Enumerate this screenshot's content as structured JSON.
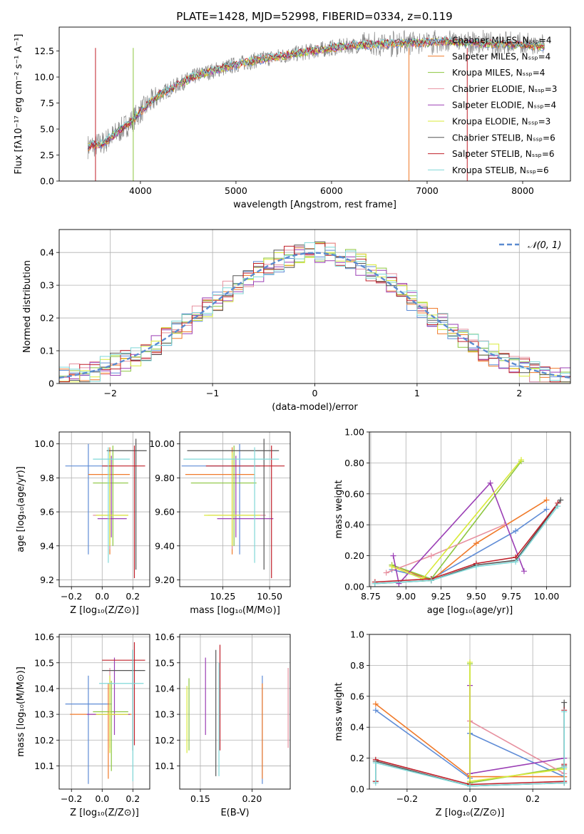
{
  "title": "PLATE=1428, MJD=52998, FIBERID=0334, z=0.119",
  "colors": {
    "chabrier_miles": "#5f8cd6",
    "salpeter_miles": "#f07a2a",
    "kroupa_miles": "#8cc63f",
    "chabrier_elodie": "#e7909f",
    "salpeter_elodie": "#9b3fb5",
    "kroupa_elodie": "#d9ea3a",
    "chabrier_stelib": "#555555",
    "salpeter_stelib": "#c0202a",
    "kroupa_stelib": "#7fd8d8",
    "normal": "#5b8bd0",
    "data_grey": "#888888"
  },
  "chart_data": [
    {
      "id": "spectrum",
      "type": "line",
      "xlabel": "wavelength [Angstrom, rest frame]",
      "ylabel": "Flux [fλ10⁻¹⁷ erg cm⁻² s⁻¹ A⁻¹]",
      "xlim": [
        3150,
        8500
      ],
      "ylim": [
        0,
        14.8
      ],
      "xticks": [
        4000,
        5000,
        6000,
        7000,
        8000
      ],
      "yticks": [
        0.0,
        2.5,
        5.0,
        7.5,
        10.0,
        12.5
      ],
      "legend_position": "upper right",
      "continuum": {
        "x": [
          3450,
          3600,
          3750,
          3900,
          4000,
          4200,
          4400,
          4600,
          4800,
          5000,
          5200,
          5400,
          5600,
          5800,
          6000,
          6200,
          6400,
          6600,
          6800,
          7000,
          7200,
          7400,
          7600,
          7800,
          8000,
          8200
        ],
        "y": [
          3.3,
          3.6,
          4.6,
          5.7,
          6.7,
          8.3,
          9.3,
          10.2,
          10.7,
          11.2,
          11.6,
          11.9,
          12.2,
          12.5,
          12.8,
          13.0,
          13.1,
          13.2,
          13.3,
          13.3,
          13.4,
          13.3,
          13.2,
          13.2,
          13.1,
          12.9
        ]
      },
      "series": [
        {
          "name": "Chabrier MILES, Nₛₛₚ=4",
          "color_key": "chabrier_miles"
        },
        {
          "name": "Salpeter MILES, Nₛₛₚ=4",
          "color_key": "salpeter_miles"
        },
        {
          "name": "Kroupa MILES, Nₛₛₚ=4",
          "color_key": "kroupa_miles"
        },
        {
          "name": "Chabrier ELODIE, Nₛₛₚ=3",
          "color_key": "chabrier_elodie"
        },
        {
          "name": "Salpeter ELODIE, Nₛₛₚ=4",
          "color_key": "salpeter_elodie"
        },
        {
          "name": "Kroupa ELODIE, Nₛₛₚ=3",
          "color_key": "kroupa_elodie"
        },
        {
          "name": "Chabrier STELIB, Nₛₛₚ=6",
          "color_key": "chabrier_stelib"
        },
        {
          "name": "Salpeter STELIB, Nₛₛₚ=6",
          "color_key": "salpeter_stelib"
        },
        {
          "name": "Kroupa STELIB, Nₛₛₚ=6",
          "color_key": "kroupa_stelib"
        }
      ]
    },
    {
      "id": "residuals",
      "type": "line",
      "xlabel": "(data-model)/error",
      "ylabel": "Normed distribution",
      "xlim": [
        -2.5,
        2.5
      ],
      "ylim": [
        0,
        0.47
      ],
      "xticks": [
        -2,
        -1,
        0,
        1,
        2
      ],
      "yticks": [
        0.0,
        0.1,
        0.2,
        0.3,
        0.4
      ],
      "grid": true,
      "legend_position": "upper right",
      "normal_label": "𝒩(0, 1)",
      "bin_width": 0.1
    },
    {
      "id": "age_vs_Z",
      "type": "scatter",
      "xlabel": "Z [log₁₀(Z/Z⊙)]",
      "ylabel": "age  [log₁₀(age/yr)]",
      "xlim": [
        -0.28,
        0.31
      ],
      "ylim": [
        9.16,
        10.07
      ],
      "xticks": [
        -0.2,
        0.0,
        0.2
      ],
      "yticks": [
        9.2,
        9.4,
        9.6,
        9.8,
        10.0
      ],
      "grid": true,
      "points": [
        {
          "c": "chabrier_miles",
          "x": -0.09,
          "xlo": -0.24,
          "xhi": 0.06,
          "y": 9.87,
          "ylo": 9.35,
          "yhi": 10.0
        },
        {
          "c": "salpeter_miles",
          "x": 0.05,
          "xlo": -0.09,
          "xhi": 0.18,
          "y": 9.82,
          "ylo": 9.35,
          "yhi": 9.98
        },
        {
          "c": "kroupa_miles",
          "x": 0.07,
          "xlo": -0.06,
          "xhi": 0.17,
          "y": 9.77,
          "ylo": 9.4,
          "yhi": 9.99
        },
        {
          "c": "chabrier_elodie",
          "x": 0.05,
          "xlo": -0.06,
          "xhi": 0.17,
          "y": 9.58,
          "ylo": 9.38,
          "yhi": 9.9
        },
        {
          "c": "salpeter_elodie",
          "x": 0.06,
          "xlo": -0.03,
          "xhi": 0.16,
          "y": 9.56,
          "ylo": 9.45,
          "yhi": 9.93
        },
        {
          "c": "kroupa_elodie",
          "x": 0.05,
          "xlo": -0.04,
          "xhi": 0.17,
          "y": 9.58,
          "ylo": 9.4,
          "yhi": 9.95
        },
        {
          "c": "chabrier_stelib",
          "x": 0.22,
          "xlo": 0.03,
          "xhi": 0.29,
          "y": 9.96,
          "ylo": 9.26,
          "yhi": 10.03
        },
        {
          "c": "salpeter_stelib",
          "x": 0.21,
          "xlo": 0.0,
          "xhi": 0.28,
          "y": 9.87,
          "ylo": 9.21,
          "yhi": 9.99
        },
        {
          "c": "kroupa_stelib",
          "x": 0.04,
          "xlo": -0.06,
          "xhi": 0.18,
          "y": 9.91,
          "ylo": 9.3,
          "yhi": 9.98
        }
      ]
    },
    {
      "id": "age_vs_mass",
      "type": "scatter",
      "xlabel": "mass [log₁₀(M/M⊙)]",
      "ylabel": "",
      "xlim": [
        10.02,
        10.61
      ],
      "ylim": [
        9.16,
        10.07
      ],
      "xticks": [
        10.25,
        10.5
      ],
      "yticks": [
        9.2,
        9.4,
        9.6,
        9.8,
        10.0
      ],
      "grid": true,
      "points": [
        {
          "c": "chabrier_miles",
          "x": 10.34,
          "xlo": 10.03,
          "xhi": 10.45,
          "y": 9.87,
          "ylo": 9.35,
          "yhi": 10.0
        },
        {
          "c": "salpeter_miles",
          "x": 10.3,
          "xlo": 10.05,
          "xhi": 10.42,
          "y": 9.82,
          "ylo": 9.35,
          "yhi": 9.98
        },
        {
          "c": "kroupa_miles",
          "x": 10.31,
          "xlo": 10.08,
          "xhi": 10.43,
          "y": 9.77,
          "ylo": 9.4,
          "yhi": 9.99
        },
        {
          "c": "chabrier_elodie",
          "x": 10.3,
          "xlo": 10.17,
          "xhi": 10.48,
          "y": 9.58,
          "ylo": 9.38,
          "yhi": 9.9
        },
        {
          "c": "salpeter_elodie",
          "x": 10.32,
          "xlo": 10.22,
          "xhi": 10.52,
          "y": 9.56,
          "ylo": 9.45,
          "yhi": 9.93
        },
        {
          "c": "kroupa_elodie",
          "x": 10.3,
          "xlo": 10.15,
          "xhi": 10.45,
          "y": 9.58,
          "ylo": 9.4,
          "yhi": 9.95
        },
        {
          "c": "chabrier_stelib",
          "x": 10.47,
          "xlo": 10.06,
          "xhi": 10.55,
          "y": 9.96,
          "ylo": 9.26,
          "yhi": 10.03
        },
        {
          "c": "salpeter_stelib",
          "x": 10.51,
          "xlo": 10.16,
          "xhi": 10.58,
          "y": 9.87,
          "ylo": 9.21,
          "yhi": 9.99
        },
        {
          "c": "kroupa_stelib",
          "x": 10.42,
          "xlo": 10.04,
          "xhi": 10.55,
          "y": 9.91,
          "ylo": 9.3,
          "yhi": 9.98
        }
      ]
    },
    {
      "id": "weight_vs_age",
      "type": "line",
      "xlabel": "age  [log₁₀(age/yr)]",
      "ylabel": "mass weight",
      "xlim": [
        8.74,
        10.17
      ],
      "ylim": [
        0,
        1.0
      ],
      "xticks": [
        8.75,
        9.0,
        9.25,
        9.5,
        9.75,
        10.0
      ],
      "yticks": [
        0.0,
        0.2,
        0.4,
        0.6,
        0.8,
        1.0
      ],
      "grid": true,
      "series": [
        {
          "c": "chabrier_miles",
          "x": [
            8.9,
            9.18,
            9.78,
            10.0
          ],
          "y": [
            0.11,
            0.05,
            0.36,
            0.5
          ]
        },
        {
          "c": "salpeter_miles",
          "x": [
            8.9,
            9.18,
            9.5,
            10.0
          ],
          "y": [
            0.14,
            0.04,
            0.28,
            0.56
          ]
        },
        {
          "c": "kroupa_miles",
          "x": [
            8.9,
            9.18,
            9.82
          ],
          "y": [
            0.14,
            0.05,
            0.81
          ]
        },
        {
          "c": "chabrier_elodie",
          "x": [
            8.86,
            9.18,
            9.7
          ],
          "y": [
            0.09,
            0.2,
            0.4
          ]
        },
        {
          "c": "salpeter_elodie",
          "x": [
            8.91,
            8.95,
            9.6,
            9.84
          ],
          "y": [
            0.2,
            0.02,
            0.67,
            0.1
          ]
        },
        {
          "c": "kroupa_elodie",
          "x": [
            8.9,
            9.12,
            9.82
          ],
          "y": [
            0.13,
            0.05,
            0.82
          ]
        },
        {
          "c": "chabrier_stelib",
          "x": [
            8.78,
            9.18,
            9.5,
            9.78,
            10.1
          ],
          "y": [
            0.02,
            0.04,
            0.14,
            0.17,
            0.56
          ]
        },
        {
          "c": "salpeter_stelib",
          "x": [
            8.78,
            9.18,
            9.5,
            9.78,
            10.08
          ],
          "y": [
            0.03,
            0.05,
            0.15,
            0.19,
            0.54
          ]
        },
        {
          "c": "kroupa_stelib",
          "x": [
            8.78,
            9.18,
            9.5,
            9.78,
            10.08
          ],
          "y": [
            0.02,
            0.04,
            0.13,
            0.16,
            0.52
          ]
        }
      ]
    },
    {
      "id": "mass_vs_Z",
      "type": "scatter",
      "xlabel": "Z [log₁₀(Z/Z⊙)]",
      "ylabel": "mass [log₁₀(M/M⊙)]",
      "xlim": [
        -0.28,
        0.31
      ],
      "ylim": [
        10.01,
        10.61
      ],
      "xticks": [
        -0.2,
        0.0,
        0.2
      ],
      "yticks": [
        10.1,
        10.2,
        10.3,
        10.4,
        10.5,
        10.6
      ],
      "grid": true,
      "points": [
        {
          "c": "chabrier_miles",
          "x": -0.09,
          "xlo": -0.24,
          "xhi": 0.06,
          "y": 10.34,
          "ylo": 10.03,
          "yhi": 10.45
        },
        {
          "c": "salpeter_miles",
          "x": 0.04,
          "xlo": -0.21,
          "xhi": 0.19,
          "y": 10.3,
          "ylo": 10.05,
          "yhi": 10.42
        },
        {
          "c": "kroupa_miles",
          "x": 0.06,
          "xlo": -0.06,
          "xhi": 0.17,
          "y": 10.31,
          "ylo": 10.08,
          "yhi": 10.43
        },
        {
          "c": "chabrier_elodie",
          "x": 0.05,
          "xlo": -0.06,
          "xhi": 0.18,
          "y": 10.3,
          "ylo": 10.17,
          "yhi": 10.48
        },
        {
          "c": "salpeter_elodie",
          "x": 0.08,
          "xlo": -0.1,
          "xhi": 0.18,
          "y": 10.3,
          "ylo": 10.22,
          "yhi": 10.52
        },
        {
          "c": "kroupa_elodie",
          "x": 0.05,
          "xlo": -0.04,
          "xhi": 0.17,
          "y": 10.3,
          "ylo": 10.15,
          "yhi": 10.45
        },
        {
          "c": "chabrier_stelib",
          "x": 0.2,
          "xlo": -0.0,
          "xhi": 0.28,
          "y": 10.47,
          "ylo": 10.16,
          "yhi": 10.55
        },
        {
          "c": "salpeter_stelib",
          "x": 0.21,
          "xlo": -0.0,
          "xhi": 0.28,
          "y": 10.51,
          "ylo": 10.18,
          "yhi": 10.58
        },
        {
          "c": "kroupa_stelib",
          "x": 0.2,
          "xlo": -0.02,
          "xhi": 0.27,
          "y": 10.42,
          "ylo": 10.04,
          "yhi": 10.55
        }
      ]
    },
    {
      "id": "mass_vs_ebv",
      "type": "scatter",
      "xlabel": "E(B-V)",
      "ylabel": "",
      "xlim": [
        0.13,
        0.237
      ],
      "ylim": [
        10.01,
        10.61
      ],
      "xticks": [
        0.15,
        0.2
      ],
      "yticks": [
        10.1,
        10.2,
        10.3,
        10.4,
        10.5,
        10.6
      ],
      "grid": true,
      "points": [
        {
          "c": "chabrier_miles",
          "x": 0.21,
          "y": 10.34,
          "ylo": 10.03,
          "yhi": 10.45
        },
        {
          "c": "salpeter_miles",
          "x": 0.21,
          "y": 10.3,
          "ylo": 10.05,
          "yhi": 10.42
        },
        {
          "c": "kroupa_miles",
          "x": 0.139,
          "y": 10.31,
          "ylo": 10.16,
          "yhi": 10.44
        },
        {
          "c": "chabrier_elodie",
          "x": 0.235,
          "y": 10.3,
          "ylo": 10.17,
          "yhi": 10.48
        },
        {
          "c": "salpeter_elodie",
          "x": 0.155,
          "y": 10.3,
          "ylo": 10.22,
          "yhi": 10.52
        },
        {
          "c": "kroupa_elodie",
          "x": 0.137,
          "y": 10.3,
          "ylo": 10.15,
          "yhi": 10.41
        },
        {
          "c": "chabrier_stelib",
          "x": 0.165,
          "y": 10.47,
          "ylo": 10.06,
          "yhi": 10.55
        },
        {
          "c": "salpeter_stelib",
          "x": 0.169,
          "y": 10.51,
          "ylo": 10.16,
          "yhi": 10.57
        },
        {
          "c": "kroupa_stelib",
          "x": 0.168,
          "y": 10.42,
          "ylo": 10.06,
          "yhi": 10.5
        }
      ]
    },
    {
      "id": "weight_vs_Z",
      "type": "line",
      "xlabel": "Z [log₁₀(Z/Z⊙)]",
      "ylabel": "mass weight",
      "xlim": [
        -0.32,
        0.32
      ],
      "ylim": [
        0,
        1.0
      ],
      "xticks": [
        -0.2,
        0.0,
        0.2
      ],
      "yticks": [
        0.0,
        0.2,
        0.4,
        0.6,
        0.8,
        1.0
      ],
      "grid": true,
      "series": [
        {
          "c": "chabrier_miles",
          "x": [
            -0.3,
            0.0,
            0.0,
            0.0,
            0.3
          ],
          "y": [
            0.51,
            0.07,
            0.36,
            0.36,
            0.08
          ]
        },
        {
          "c": "salpeter_miles",
          "x": [
            -0.3,
            0.0,
            0.3
          ],
          "y": [
            0.55,
            0.08,
            0.08
          ]
        },
        {
          "c": "kroupa_miles",
          "x": [
            0.0,
            0.0,
            0.3
          ],
          "y": [
            0.81,
            0.04,
            0.14
          ]
        },
        {
          "c": "chabrier_elodie",
          "x": [
            0.0,
            0.0,
            0.3
          ],
          "y": [
            0.44,
            0.44,
            0.1
          ]
        },
        {
          "c": "salpeter_elodie",
          "x": [
            0.0,
            0.0,
            0.3
          ],
          "y": [
            0.67,
            0.1,
            0.2
          ]
        },
        {
          "c": "kroupa_elodie",
          "x": [
            0.0,
            0.0,
            0.3
          ],
          "y": [
            0.82,
            0.05,
            0.13
          ]
        },
        {
          "c": "chabrier_stelib",
          "x": [
            -0.3,
            -0.3,
            0.0,
            0.3,
            0.3,
            0.3
          ],
          "y": [
            0.05,
            0.18,
            0.02,
            0.04,
            0.56,
            0.15
          ]
        },
        {
          "c": "salpeter_stelib",
          "x": [
            -0.3,
            -0.3,
            0.0,
            0.3,
            0.3,
            0.3
          ],
          "y": [
            0.05,
            0.19,
            0.03,
            0.05,
            0.51,
            0.16
          ]
        },
        {
          "c": "kroupa_stelib",
          "x": [
            -0.3,
            -0.3,
            0.0,
            0.3,
            0.3,
            0.3
          ],
          "y": [
            0.04,
            0.17,
            0.02,
            0.04,
            0.5,
            0.14
          ]
        }
      ]
    }
  ]
}
